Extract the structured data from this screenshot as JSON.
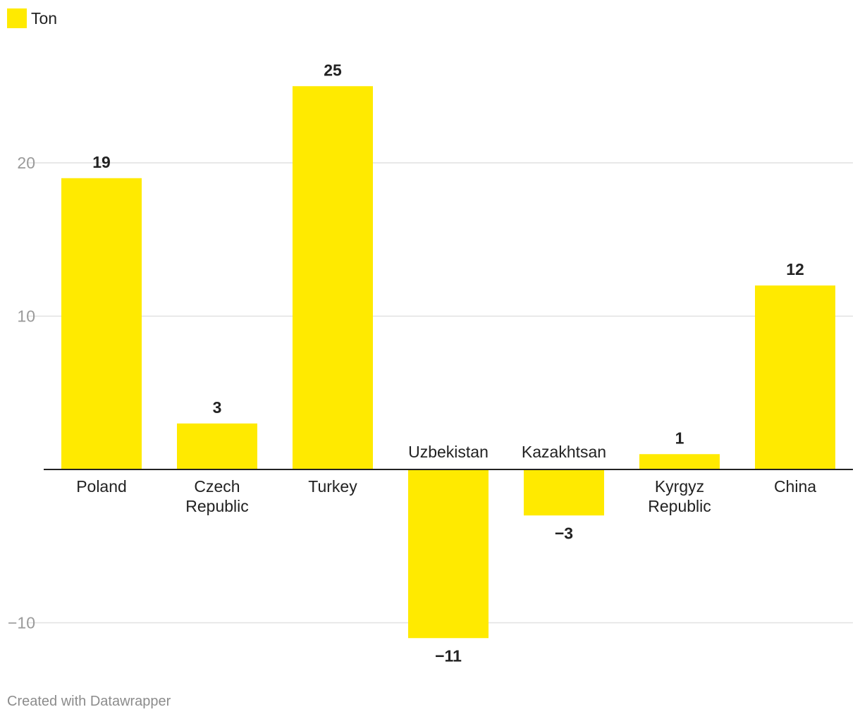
{
  "chart_data": {
    "type": "bar",
    "categories": [
      [
        "Poland"
      ],
      [
        "Czech",
        "Republic"
      ],
      [
        "Turkey"
      ],
      [
        "Uzbekistan"
      ],
      [
        "Kazakhtsan"
      ],
      [
        "Kyrgyz",
        "Republic"
      ],
      [
        "China"
      ]
    ],
    "series": [
      {
        "name": "Ton",
        "values": [
          19,
          3,
          25,
          -11,
          -3,
          1,
          12
        ]
      }
    ],
    "value_labels": [
      "19",
      "3",
      "25",
      "−11",
      "−3",
      "1",
      "12"
    ],
    "yticks": [
      20,
      10,
      -10
    ],
    "ytick_labels": [
      "20",
      "10",
      "−10"
    ],
    "ylim": [
      -12.5,
      26.2
    ],
    "grid": true,
    "legend_position": "top-left",
    "bar_color": "#ffea00",
    "title": "",
    "xlabel": "",
    "ylabel": ""
  },
  "footer": {
    "credit": "Created with Datawrapper"
  }
}
